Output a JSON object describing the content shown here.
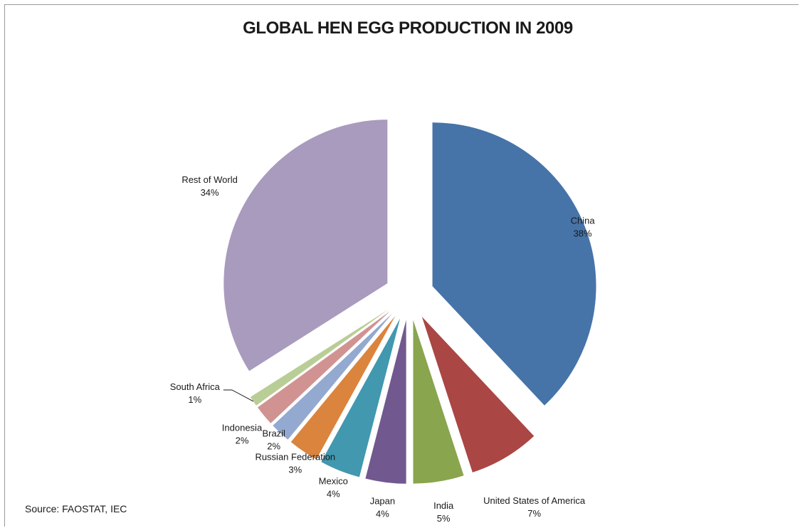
{
  "chart_data": {
    "type": "pie",
    "title": "GLOBAL HEN EGG PRODUCTION IN 2009",
    "unit": "%",
    "slices": [
      {
        "name": "China",
        "value": 38,
        "label": "38%",
        "color": "#4674a8"
      },
      {
        "name": "United States of America",
        "value": 7,
        "label": "7%",
        "color": "#aa4644"
      },
      {
        "name": "India",
        "value": 5,
        "label": "5%",
        "color": "#89a54e"
      },
      {
        "name": "Japan",
        "value": 4,
        "label": "4%",
        "color": "#71588f"
      },
      {
        "name": "Mexico",
        "value": 4,
        "label": "4%",
        "color": "#4198af"
      },
      {
        "name": "Russian Federation",
        "value": 3,
        "label": "3%",
        "color": "#db843d"
      },
      {
        "name": "Brazil",
        "value": 2,
        "label": "2%",
        "color": "#93a9cf"
      },
      {
        "name": "Indonesia",
        "value": 2,
        "label": "2%",
        "color": "#d19392"
      },
      {
        "name": "South Africa",
        "value": 1,
        "label": "1%",
        "color": "#b9cd96"
      },
      {
        "name": "Rest of World",
        "value": 34,
        "label": "34%",
        "color": "#a99bbd"
      }
    ],
    "legend": "none",
    "exploded": true
  },
  "source": "Source: FAOSTAT, IEC"
}
